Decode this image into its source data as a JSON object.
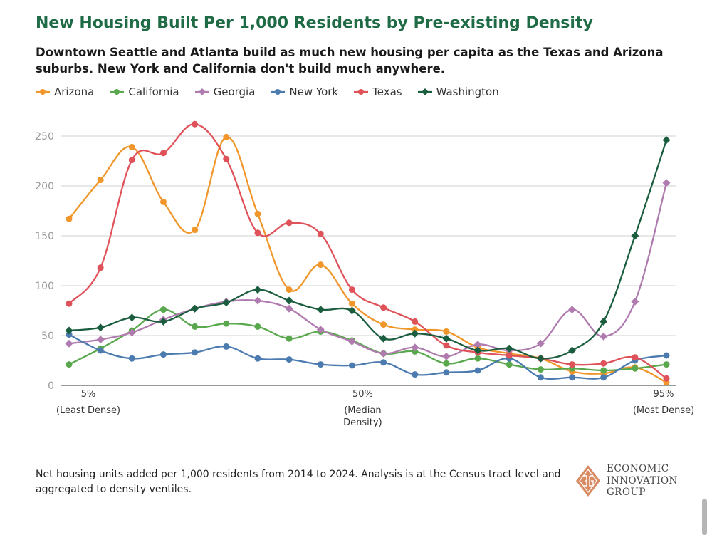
{
  "title": "New Housing Built Per 1,000 Residents by Pre-existing Density",
  "subtitle": "Downtown Seattle and Atlanta build as much new housing per capita as the Texas and Arizona suburbs. New York and California don't build much anywhere.",
  "note": "Net housing units added per 1,000 residents from 2014 to 2024. Analysis is at the Census tract level and aggregated to density ventiles.",
  "logo": {
    "lines": [
      "ECONOMIC",
      "INNOVATION",
      "GROUP"
    ],
    "color": "#d98c63"
  },
  "chart_data": {
    "type": "line",
    "title": "New Housing Built Per 1,000 Residents by Pre-existing Density",
    "xlabel": "",
    "ylabel": "",
    "ylim": [
      0,
      250
    ],
    "yticks": [
      0,
      50,
      100,
      150,
      200,
      250
    ],
    "grid": true,
    "legend_position": "top-left",
    "x_tick_labels": [
      {
        "index": 0,
        "label": "5%",
        "sublabel": "(Least Dense)"
      },
      {
        "index": 9,
        "label": "50%",
        "sublabel": "(Median Density)"
      },
      {
        "index": 19,
        "label": "95%",
        "sublabel": "(Most Dense)"
      }
    ],
    "series": [
      {
        "name": "Arizona",
        "color": "#f0962a",
        "marker": "circle",
        "values": [
          167,
          206,
          239,
          184,
          156,
          249,
          172,
          96,
          121,
          82,
          61,
          56,
          54,
          38,
          32,
          27,
          14,
          12,
          18,
          3
        ]
      },
      {
        "name": "California",
        "color": "#5aa84e",
        "marker": "circle",
        "values": [
          21,
          37,
          55,
          76,
          59,
          62,
          59,
          47,
          54,
          45,
          32,
          34,
          22,
          27,
          21,
          16,
          17,
          15,
          17,
          21
        ]
      },
      {
        "name": "Georgia",
        "color": "#b07cb0",
        "marker": "diamond",
        "values": [
          42,
          46,
          53,
          66,
          77,
          84,
          85,
          77,
          56,
          44,
          32,
          38,
          29,
          41,
          35,
          42,
          76,
          49,
          84,
          203
        ]
      },
      {
        "name": "New York",
        "color": "#4c7bb0",
        "marker": "circle",
        "values": [
          51,
          35,
          27,
          31,
          33,
          39,
          27,
          26,
          21,
          20,
          23,
          11,
          13,
          15,
          27,
          8,
          8,
          8,
          25,
          30
        ]
      },
      {
        "name": "Texas",
        "color": "#e0525a",
        "marker": "circle",
        "values": [
          82,
          118,
          226,
          233,
          262,
          227,
          153,
          163,
          152,
          96,
          78,
          64,
          40,
          33,
          30,
          27,
          21,
          22,
          28,
          7
        ]
      },
      {
        "name": "Washington",
        "color": "#1b5e3f",
        "marker": "diamond",
        "values": [
          55,
          58,
          68,
          64,
          77,
          83,
          96,
          85,
          76,
          75,
          47,
          52,
          47,
          35,
          37,
          27,
          35,
          64,
          150,
          246
        ]
      }
    ]
  }
}
